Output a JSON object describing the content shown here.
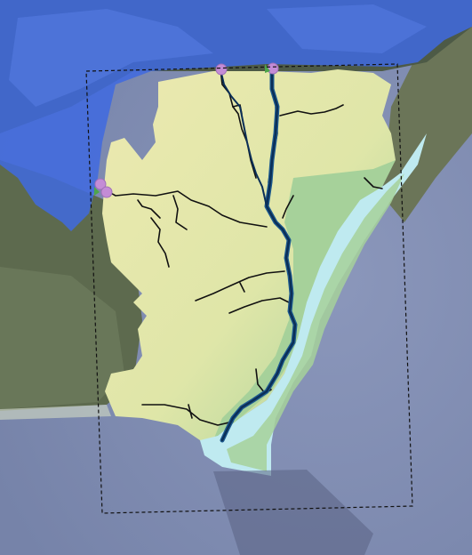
{
  "map": {
    "colors": {
      "ocean": "#7f8bb0",
      "ocean_light": "#8b97bb",
      "land_satellite": "#5d6a4e",
      "upland_overlay": "#3f6ae0",
      "terrain_low": "#a6d19a",
      "terrain_mid": "#cfe3a0",
      "terrain_high": "#ece9b0",
      "barrier_island": "#bfeaf0",
      "river_main": "#0b2f57",
      "stream": "#111111",
      "gauge_marker": "#c48cd6",
      "gauge_marker_alt": "#4ea54a",
      "bbox_stroke": "#111111"
    },
    "layers": [
      "satellite-basemap",
      "upland-overlay",
      "watershed-terrain",
      "barrier-island",
      "stream-network",
      "main-river-channel",
      "gauge-markers",
      "study-area-bounding-box"
    ],
    "markers": [
      {
        "name": "gauge-marker-north-1",
        "type": "gauge"
      },
      {
        "name": "gauge-marker-north-2",
        "type": "gauge"
      },
      {
        "name": "gauge-marker-west-1",
        "type": "gauge"
      },
      {
        "name": "gauge-marker-west-2",
        "type": "gauge"
      }
    ]
  }
}
